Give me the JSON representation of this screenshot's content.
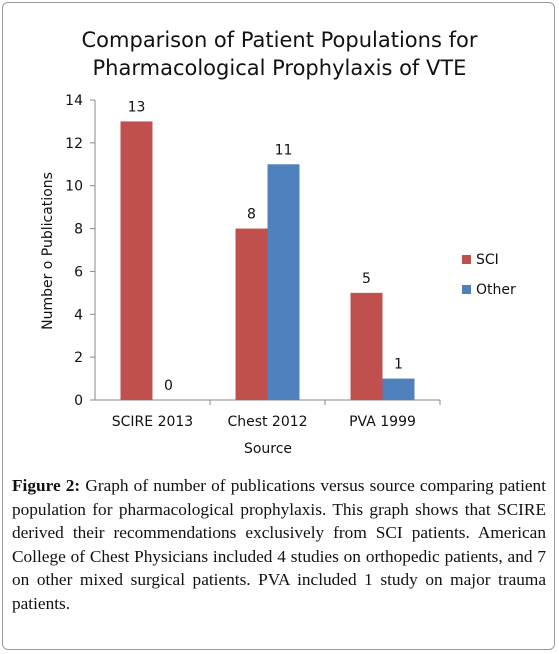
{
  "chart_data": {
    "type": "bar",
    "title": [
      "Comparison of Patient Populations for",
      "Pharmacological Prophylaxis of VTE"
    ],
    "xlabel": "Source",
    "ylabel": "Number o Publications",
    "categories": [
      "SCIRE 2013",
      "Chest 2012",
      "PVA 1999"
    ],
    "series": [
      {
        "name": "SCI",
        "values": [
          13,
          8,
          5
        ],
        "color": "#c0504d"
      },
      {
        "name": "Other",
        "values": [
          0,
          11,
          1
        ],
        "color": "#4f81bd"
      }
    ],
    "ylim": [
      0,
      14
    ],
    "yticks": [
      0,
      2,
      4,
      6,
      8,
      10,
      12,
      14
    ],
    "data_labels": true,
    "grid": false,
    "legend_position": "right"
  },
  "caption": {
    "label": "Figure 2:",
    "text": " Graph of number of publications versus source comparing patient population for pharmacological prophylaxis. This graph shows that SCIRE derived their recommendations exclusively from SCI patients. American College of Chest Physicians included 4 studies on orthopedic patients, and 7 on other mixed surgical patients. PVA included 1 study on major trauma patients."
  }
}
